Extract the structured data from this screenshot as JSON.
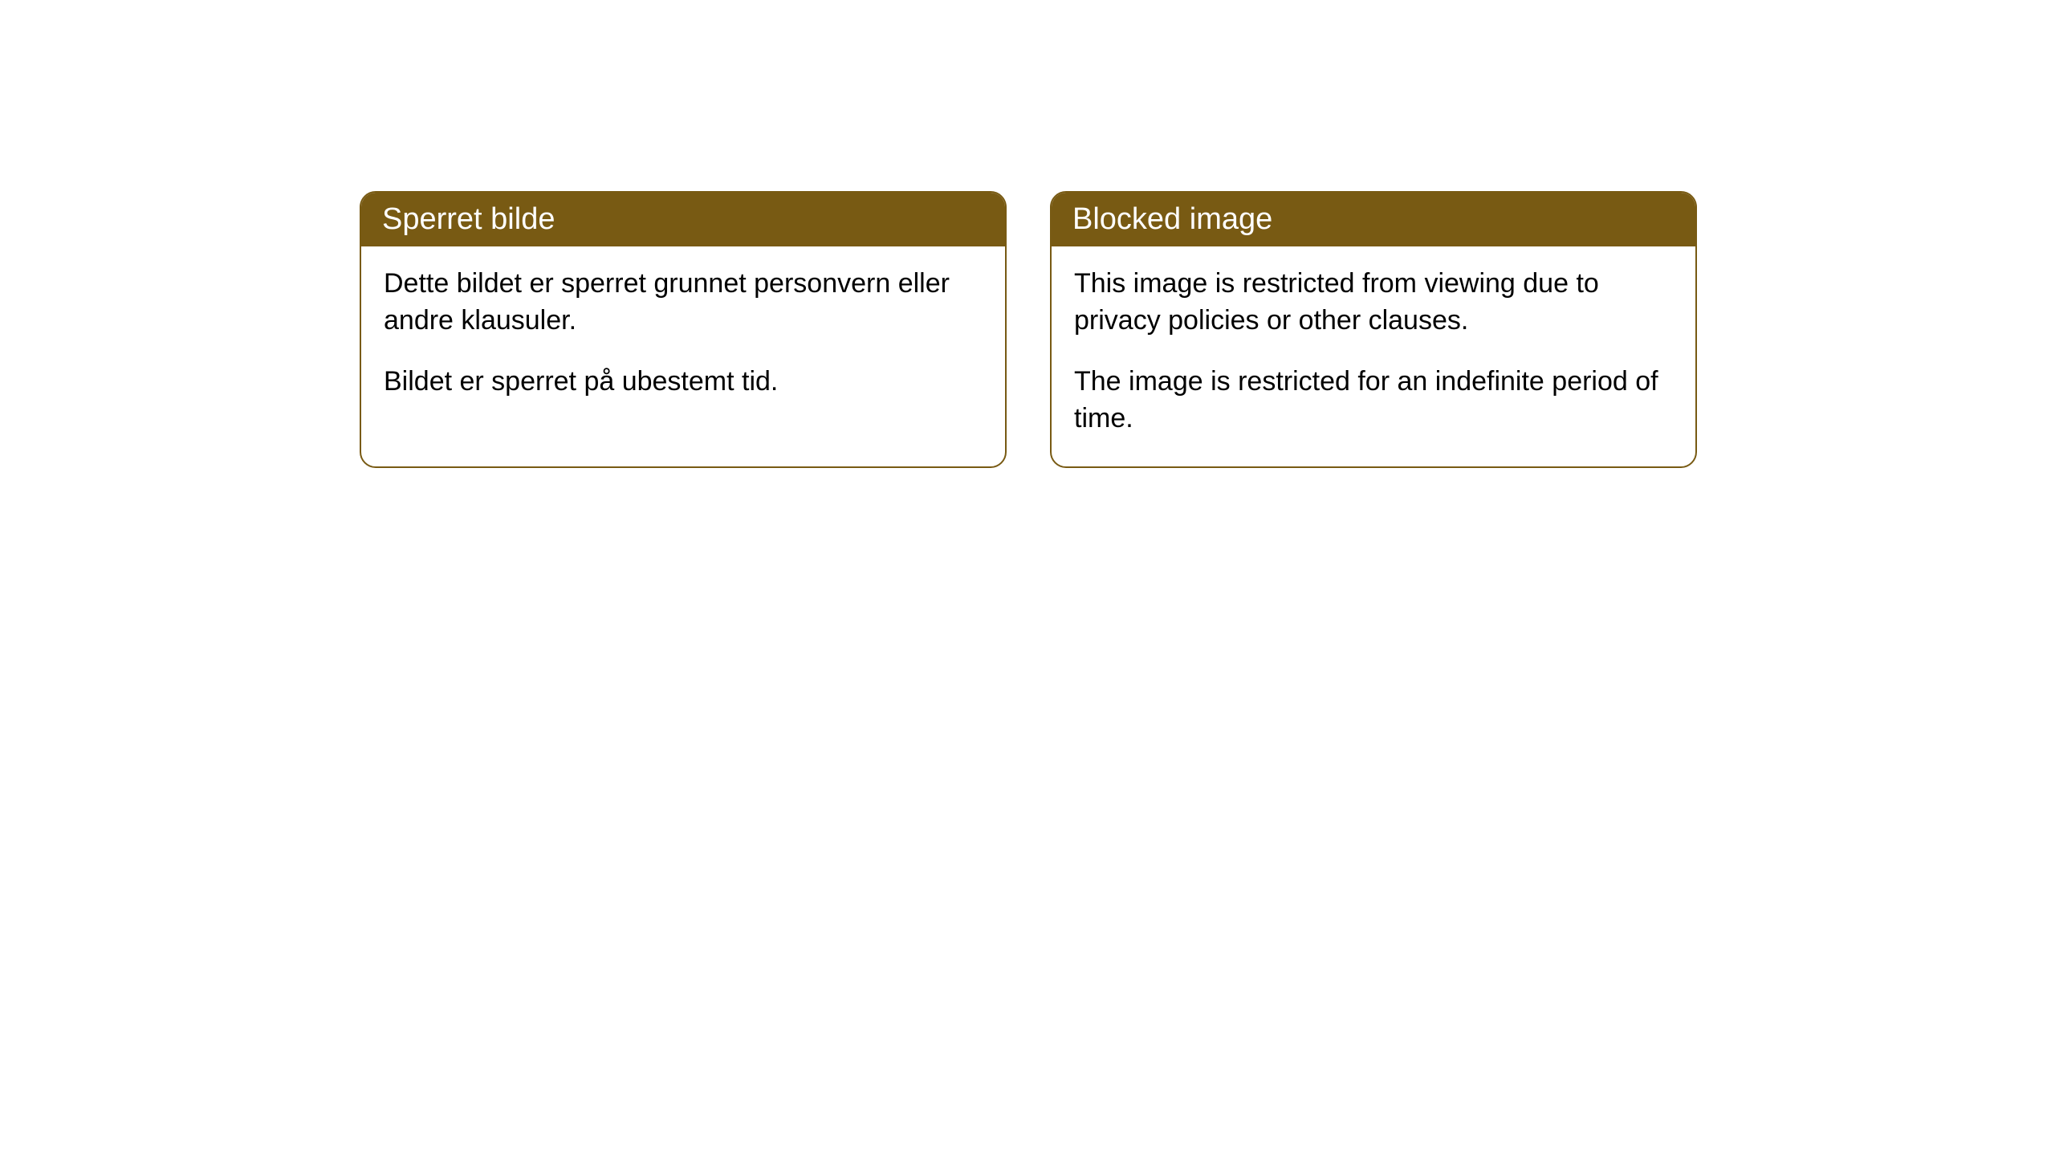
{
  "cards": [
    {
      "header": "Sperret bilde",
      "paragraph1": "Dette bildet er sperret grunnet personvern eller andre klausuler.",
      "paragraph2": "Bildet er sperret på ubestemt tid."
    },
    {
      "header": "Blocked image",
      "paragraph1": "This image is restricted from viewing due to privacy policies or other clauses.",
      "paragraph2": "The image is restricted for an indefinite period of time."
    }
  ],
  "styles": {
    "header_bg_color": "#785a13",
    "header_text_color": "#ffffff",
    "border_color": "#785a13",
    "body_bg_color": "#ffffff",
    "text_color": "#000000",
    "border_radius": 20,
    "header_fontsize": 38,
    "body_fontsize": 34
  }
}
